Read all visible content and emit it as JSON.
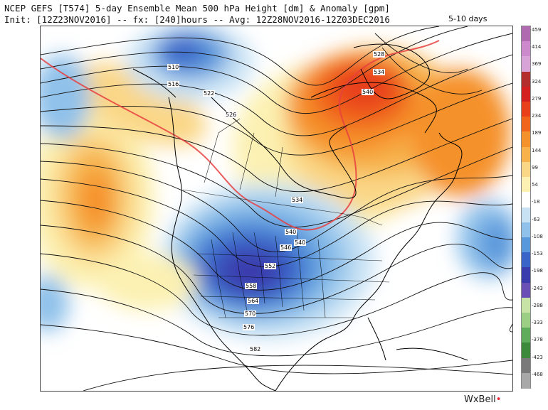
{
  "header": {
    "line1": "NCEP GEFS [T574] 5-day Ensemble Mean 500 hPa Height [dm] & Anomaly [gpm]",
    "line2": "Init: [12Z23NOV2016] -- fx: [240]hours -- Avg: 12Z28NOV2016-12Z03DEC2016",
    "range": "5-10 days"
  },
  "contour_labels": [
    "510",
    "516",
    "522",
    "526",
    "528",
    "534",
    "540",
    "540",
    "534",
    "540",
    "546",
    "552",
    "558",
    "564",
    "570",
    "576",
    "582"
  ],
  "colorbar": {
    "ticks": [
      "459",
      "414",
      "369",
      "324",
      "279",
      "234",
      "189",
      "144",
      "99",
      "54",
      "-18",
      "-63",
      "-108",
      "-153",
      "-198",
      "-243",
      "-288",
      "-333",
      "-378",
      "-423",
      "-468"
    ],
    "colors": [
      "#b06ab0",
      "#cc8acc",
      "#d8a4d8",
      "#b52e2e",
      "#d42020",
      "#e8401a",
      "#f0641c",
      "#f5912a",
      "#f7b24b",
      "#fad787",
      "#fcf1b2",
      "#ffffff",
      "#c8e2f4",
      "#8fc1ea",
      "#5a98dc",
      "#3a64c8",
      "#3a3cae",
      "#6a50b4",
      "#c7e3a6",
      "#9ccf86",
      "#5fad5c",
      "#3d8a3d",
      "#7a7a7a",
      "#a8a8a8"
    ]
  },
  "brand": {
    "text": "WxBell",
    "dot": "•"
  }
}
